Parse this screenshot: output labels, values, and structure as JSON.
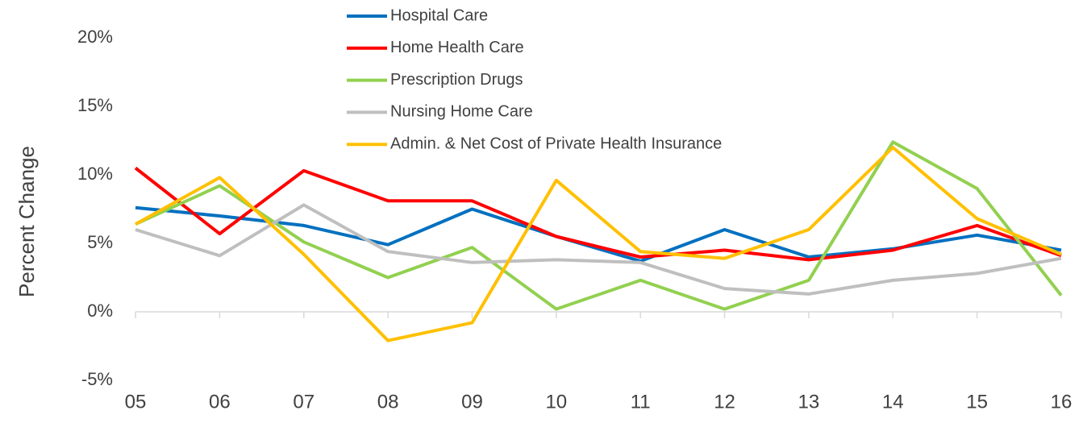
{
  "chart_data": {
    "type": "line",
    "y_label": "Percent Change",
    "categories": [
      "05",
      "06",
      "07",
      "08",
      "09",
      "10",
      "11",
      "12",
      "13",
      "14",
      "15",
      "16"
    ],
    "series": [
      {
        "name": "Hospital Care",
        "color": "#0070c0",
        "values": [
          7.6,
          7.0,
          6.3,
          4.9,
          7.5,
          5.5,
          3.7,
          6.0,
          4.0,
          4.6,
          5.6,
          4.5
        ]
      },
      {
        "name": "Home Health Care",
        "color": "#ff0000",
        "values": [
          10.5,
          5.7,
          10.3,
          8.1,
          8.1,
          5.5,
          4.0,
          4.5,
          3.8,
          4.5,
          6.3,
          4.1
        ]
      },
      {
        "name": "Prescription Drugs",
        "color": "#92d050",
        "values": [
          6.4,
          9.2,
          5.1,
          2.5,
          4.7,
          0.2,
          2.3,
          0.2,
          2.3,
          12.4,
          9.0,
          1.2
        ]
      },
      {
        "name": "Nursing Home Care",
        "color": "#bfbfbf",
        "values": [
          6.0,
          4.1,
          7.8,
          4.4,
          3.6,
          3.8,
          3.6,
          1.7,
          1.3,
          2.3,
          2.8,
          3.9
        ]
      },
      {
        "name": "Admin. & Net Cost of Private Health Insurance",
        "color": "#ffc000",
        "values": [
          6.4,
          9.8,
          4.2,
          -2.1,
          -0.8,
          9.6,
          4.4,
          3.9,
          6.0,
          12.0,
          6.8,
          4.2
        ]
      }
    ],
    "ylim": [
      -5,
      20
    ],
    "yticks": [
      {
        "value": -5,
        "label": "-5%"
      },
      {
        "value": 0,
        "label": "0%"
      },
      {
        "value": 5,
        "label": "5%"
      },
      {
        "value": 10,
        "label": "10%"
      },
      {
        "value": 15,
        "label": "15%"
      },
      {
        "value": 20,
        "label": "20%"
      }
    ],
    "grid": false,
    "legend": "top"
  }
}
